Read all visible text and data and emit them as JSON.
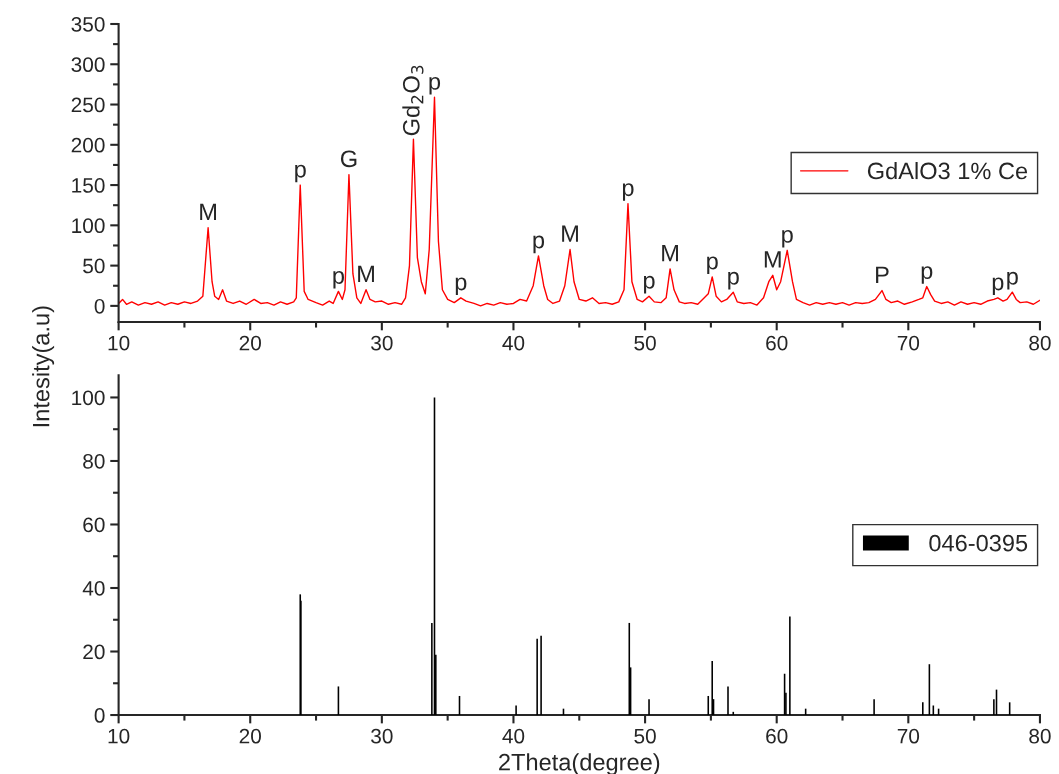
{
  "chart_data": [
    {
      "type": "line",
      "ylabel": "Intesity(a.u)",
      "legend": "center right",
      "xlim": [
        10,
        80
      ],
      "xticks": [
        10,
        20,
        30,
        40,
        50,
        60,
        70,
        80
      ],
      "ylim": [
        -20,
        350
      ],
      "yticks": [
        0,
        50,
        100,
        150,
        200,
        250,
        300,
        350
      ],
      "series": [
        {
          "name": "GdAlO3 1% Ce",
          "color": "#ff0000",
          "x": [
            10,
            10.3,
            10.6,
            11,
            11.5,
            12,
            12.5,
            13,
            13.5,
            14,
            14.5,
            15,
            15.5,
            16,
            16.4,
            16.8,
            17.1,
            17.3,
            17.6,
            17.9,
            18.2,
            18.7,
            19.2,
            19.7,
            20.3,
            20.8,
            21.3,
            21.8,
            22.3,
            22.8,
            23.3,
            23.5,
            23.8,
            24.1,
            24.4,
            25,
            25.5,
            26,
            26.3,
            26.7,
            27.0,
            27.2,
            27.5,
            27.8,
            28.1,
            28.4,
            28.8,
            29.1,
            29.5,
            30,
            30.5,
            31,
            31.5,
            31.8,
            32.1,
            32.4,
            32.7,
            33.0,
            33.3,
            33.6,
            34.0,
            34.3,
            34.6,
            35,
            35.5,
            36.0,
            36.4,
            37,
            37.5,
            38,
            38.5,
            39,
            39.5,
            40,
            40.5,
            41,
            41.5,
            41.9,
            42.3,
            42.6,
            43,
            43.5,
            43.9,
            44.3,
            44.6,
            45,
            45.5,
            46.0,
            46.5,
            47,
            47.5,
            48,
            48.4,
            48.7,
            49.0,
            49.4,
            49.8,
            50.3,
            50.7,
            51.2,
            51.6,
            51.9,
            52.2,
            52.6,
            53,
            53.5,
            54,
            54.5,
            54.8,
            55.1,
            55.4,
            55.8,
            56.2,
            56.7,
            57.0,
            57.5,
            58,
            58.5,
            59,
            59.4,
            59.7,
            60.0,
            60.3,
            60.8,
            61.2,
            61.5,
            62,
            62.5,
            63,
            63.5,
            64,
            64.5,
            65,
            65.5,
            66,
            66.5,
            67,
            67.5,
            68.0,
            68.3,
            68.7,
            69.2,
            69.7,
            70.3,
            70.8,
            71.1,
            71.4,
            71.7,
            72,
            72.5,
            73,
            73.5,
            74,
            74.5,
            75,
            75.5,
            76,
            76.5,
            76.8,
            77.2,
            77.5,
            77.9,
            78.2,
            78.5,
            79,
            79.5,
            80
          ],
          "values": [
            3,
            8,
            2,
            5,
            1,
            4,
            2,
            5,
            1,
            4,
            2,
            5,
            3,
            6,
            12,
            97,
            30,
            12,
            8,
            20,
            6,
            3,
            6,
            2,
            8,
            3,
            4,
            1,
            5,
            2,
            5,
            10,
            150,
            18,
            8,
            4,
            1,
            6,
            3,
            18,
            8,
            20,
            163,
            40,
            10,
            3,
            20,
            8,
            5,
            6,
            2,
            4,
            2,
            10,
            50,
            207,
            60,
            30,
            15,
            70,
            259,
            80,
            20,
            8,
            4,
            10,
            6,
            3,
            0,
            3,
            1,
            4,
            2,
            3,
            8,
            6,
            25,
            62,
            25,
            8,
            3,
            6,
            25,
            70,
            30,
            8,
            6,
            10,
            3,
            4,
            2,
            5,
            20,
            127,
            30,
            8,
            5,
            12,
            5,
            4,
            10,
            46,
            20,
            5,
            3,
            4,
            2,
            10,
            15,
            36,
            12,
            5,
            8,
            17,
            5,
            3,
            4,
            1,
            10,
            30,
            38,
            20,
            30,
            69,
            30,
            8,
            4,
            1,
            4,
            2,
            4,
            2,
            4,
            1,
            4,
            3,
            4,
            8,
            19,
            8,
            4,
            6,
            2,
            5,
            8,
            10,
            24,
            14,
            6,
            3,
            5,
            1,
            5,
            2,
            4,
            2,
            6,
            8,
            10,
            6,
            8,
            17,
            8,
            4,
            5,
            2,
            7
          ]
        }
      ],
      "annotations": [
        {
          "text": "M",
          "x": 16.8,
          "y": 97
        },
        {
          "text": "p",
          "x": 23.8,
          "y": 150
        },
        {
          "text": "p",
          "x": 26.7,
          "y": 18
        },
        {
          "text": "G",
          "x": 27.5,
          "y": 163
        },
        {
          "text": "M",
          "x": 28.8,
          "y": 20
        },
        {
          "text": "Gd$_{2}$O$_{3}$",
          "x": 32.4,
          "y": 207
        },
        {
          "text": "p",
          "x": 34.0,
          "y": 259
        },
        {
          "text": "p",
          "x": 36.0,
          "y": 10
        },
        {
          "text": "p",
          "x": 41.9,
          "y": 62
        },
        {
          "text": "M",
          "x": 44.3,
          "y": 70
        },
        {
          "text": "p",
          "x": 48.7,
          "y": 127
        },
        {
          "text": "p",
          "x": 50.3,
          "y": 12
        },
        {
          "text": "M",
          "x": 51.9,
          "y": 46
        },
        {
          "text": "p",
          "x": 55.1,
          "y": 36
        },
        {
          "text": "p",
          "x": 56.7,
          "y": 17
        },
        {
          "text": "M",
          "x": 59.7,
          "y": 38
        },
        {
          "text": "p",
          "x": 60.8,
          "y": 69
        },
        {
          "text": "P",
          "x": 68.0,
          "y": 19
        },
        {
          "text": "p",
          "x": 71.4,
          "y": 24
        },
        {
          "text": "p",
          "x": 76.8,
          "y": 10
        },
        {
          "text": "p",
          "x": 77.9,
          "y": 17
        }
      ]
    },
    {
      "type": "bar",
      "xlabel": "2Theta(degree)",
      "legend": "center right",
      "xlim": [
        10,
        80
      ],
      "xticks": [
        10,
        20,
        30,
        40,
        50,
        60,
        70,
        80
      ],
      "ylim": [
        0,
        107
      ],
      "yticks": [
        0,
        20,
        40,
        60,
        80,
        100
      ],
      "series": [
        {
          "name": "046-0395",
          "color": "#000000",
          "x": [
            23.8,
            23.85,
            26.7,
            33.8,
            34.0,
            34.1,
            35.9,
            40.2,
            41.8,
            42.1,
            43.8,
            48.8,
            48.9,
            50.3,
            54.8,
            55.1,
            55.2,
            56.3,
            56.7,
            60.6,
            60.7,
            61.0,
            62.2,
            67.4,
            71.1,
            71.6,
            71.9,
            72.3,
            76.5,
            76.7,
            77.7
          ],
          "values": [
            38,
            36,
            9,
            29,
            100,
            19,
            6,
            3,
            24,
            25,
            2,
            29,
            15,
            5,
            6,
            17,
            5,
            9,
            1,
            13,
            7,
            31,
            2,
            5,
            4,
            16,
            3,
            2,
            5,
            8,
            4
          ]
        }
      ]
    }
  ]
}
